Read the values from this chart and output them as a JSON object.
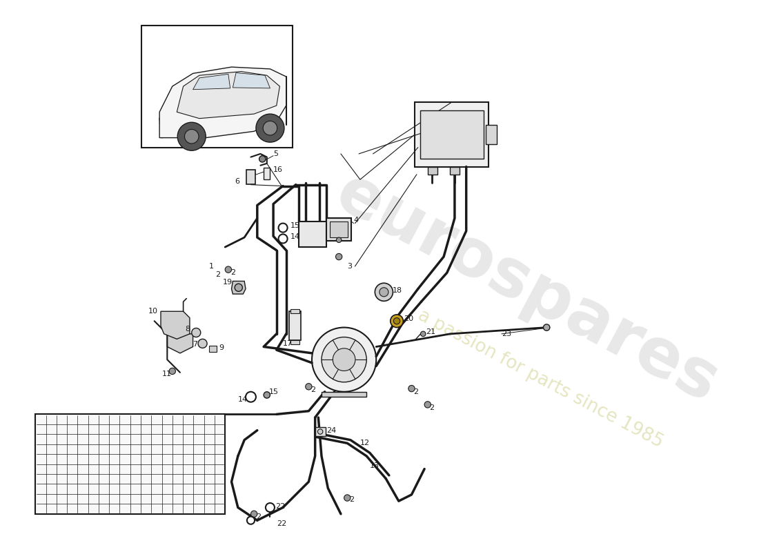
{
  "bg_color": "#ffffff",
  "line_color": "#1a1a1a",
  "watermark1": "eurospares",
  "watermark2": "a passion for parts since 1985",
  "wm_color1": "#cccccc",
  "wm_color2": "#d8d8a0",
  "wm_alpha1": 0.45,
  "wm_alpha2": 0.65,
  "wm_rot": -28,
  "wm_fs1": 70,
  "wm_fs2": 19,
  "fig_w": 11.0,
  "fig_h": 8.0,
  "dpi": 100
}
